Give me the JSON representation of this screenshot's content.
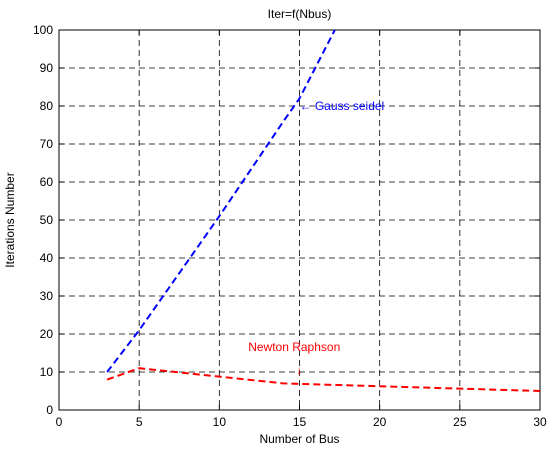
{
  "chart_data": {
    "type": "line",
    "title": "Iter=f(Nbus)",
    "xlabel": "Number of Bus",
    "ylabel": "Iterations Number",
    "xlim": [
      0,
      30
    ],
    "ylim": [
      0,
      100
    ],
    "xticks": [
      0,
      5,
      10,
      15,
      20,
      25,
      30
    ],
    "yticks": [
      0,
      10,
      20,
      30,
      40,
      50,
      60,
      70,
      80,
      90,
      100
    ],
    "grid": true,
    "grid_style": "dashed",
    "series": [
      {
        "name": "Gauss seidel",
        "color": "#0000ff",
        "line_style": "dashed",
        "x": [
          3,
          5,
          10,
          14,
          15,
          17.2
        ],
        "y": [
          10,
          21,
          51,
          76,
          82,
          100
        ]
      },
      {
        "name": "Newton Raphson",
        "color": "#ff0000",
        "line_style": "dashed",
        "x": [
          3,
          5,
          14,
          30
        ],
        "y": [
          8,
          11,
          7,
          5
        ]
      }
    ],
    "annotations": [
      {
        "name": "gauss-seidel-label",
        "text": "← Gauss seidel",
        "x": 15,
        "y": 79,
        "color": "#0000ff"
      },
      {
        "name": "newton-raphson-label",
        "text": "Newton Raphson",
        "x": 11.8,
        "y": 15.5,
        "color": "#ff0000"
      },
      {
        "name": "newton-raphson-arrow",
        "text": "↓",
        "x": 14.8,
        "y": 9.5,
        "color": "#ff0000"
      }
    ]
  }
}
